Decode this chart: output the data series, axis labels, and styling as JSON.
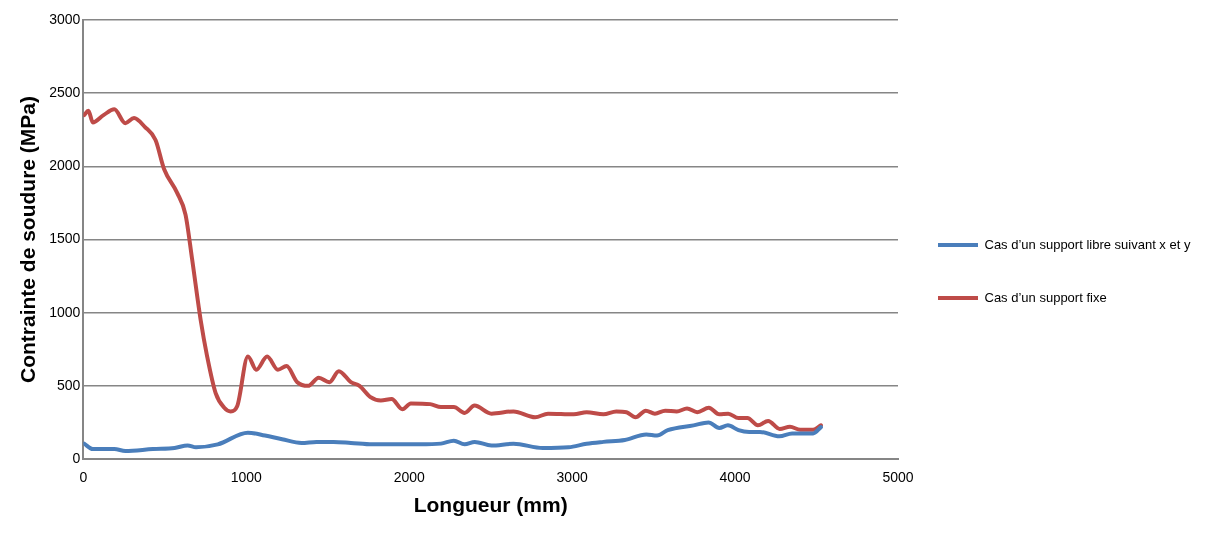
{
  "chart_data": {
    "type": "line",
    "xlabel": "Longueur (mm)",
    "ylabel": "Contrainte de soudure (MPa)",
    "xlim": [
      0,
      5000
    ],
    "xticks": [
      0,
      1000,
      2000,
      3000,
      4000,
      5000
    ],
    "ylim": [
      0,
      3000
    ],
    "yticks": [
      0,
      500,
      1000,
      1500,
      2000,
      2500,
      3000
    ],
    "grid": "y",
    "legend": "right",
    "marker": "none",
    "line_style": "solid",
    "series": [
      {
        "name": "Cas d’un support libre suivant x et y",
        "color": "#4a7ebb",
        "x": [
          5,
          58,
          190,
          258,
          427,
          560,
          640,
          692,
          825,
          1010,
          1115,
          1220,
          1339,
          1431,
          1536,
          1642,
          1774,
          1932,
          2063,
          2195,
          2274,
          2340,
          2402,
          2505,
          2640,
          2820,
          2978,
          3089,
          3192,
          3323,
          3455,
          3521,
          3587,
          3745,
          3837,
          3903,
          3956,
          4021,
          4087,
          4153,
          4272,
          4350,
          4479,
          4527
        ],
        "values": [
          105,
          68,
          68,
          55,
          68,
          75,
          93,
          80,
          100,
          180,
          160,
          135,
          110,
          117,
          117,
          110,
          100,
          100,
          100,
          105,
          125,
          100,
          117,
          92,
          104,
          75,
          80,
          104,
          117,
          130,
          168,
          160,
          197,
          230,
          250,
          212,
          230,
          197,
          185,
          185,
          155,
          175,
          175,
          218
        ]
      },
      {
        "name": "Cas d’un support fixe",
        "color": "#be4b48",
        "x": [
          5,
          31,
          58,
          124,
          190,
          258,
          311,
          377,
          443,
          496,
          575,
          627,
          667,
          720,
          760,
          812,
          865,
          904,
          944,
          1010,
          1062,
          1128,
          1194,
          1247,
          1313,
          1379,
          1445,
          1510,
          1568,
          1642,
          1695,
          1760,
          1826,
          1892,
          1958,
          2010,
          2129,
          2195,
          2274,
          2340,
          2401,
          2505,
          2640,
          2773,
          2852,
          3010,
          3089,
          3192,
          3271,
          3334,
          3389,
          3452,
          3508,
          3571,
          3642,
          3705,
          3768,
          3839,
          3903,
          3958,
          4021,
          4076,
          4140,
          4203,
          4274,
          4337,
          4400,
          4479,
          4527
        ],
        "values": [
          2350,
          2380,
          2300,
          2350,
          2390,
          2295,
          2330,
          2270,
          2180,
          1980,
          1820,
          1670,
          1370,
          950,
          700,
          450,
          350,
          325,
          360,
          700,
          610,
          700,
          610,
          635,
          525,
          500,
          555,
          525,
          600,
          525,
          500,
          425,
          400,
          410,
          340,
          380,
          375,
          355,
          355,
          315,
          365,
          310,
          325,
          285,
          310,
          305,
          320,
          305,
          325,
          320,
          285,
          330,
          310,
          330,
          325,
          345,
          320,
          350,
          305,
          310,
          280,
          280,
          230,
          260,
          205,
          220,
          200,
          200,
          230
        ]
      }
    ]
  }
}
